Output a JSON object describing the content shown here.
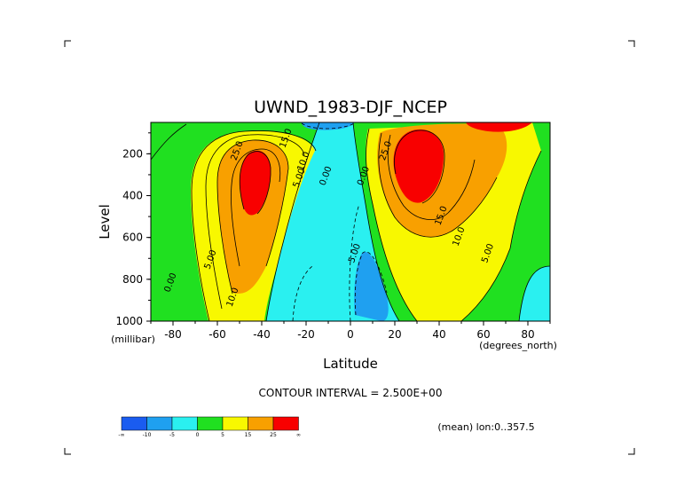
{
  "chart_data": {
    "type": "heatmap",
    "title": "UWND_1983-DJF_NCEP",
    "xlabel": "Latitude",
    "ylabel": "Level",
    "x_unit": "(degrees_north)",
    "y_unit": "(millibar)",
    "xlim": [
      -90,
      90
    ],
    "ylim": [
      1000,
      50
    ],
    "x_ticks": [
      -80,
      -60,
      -40,
      -20,
      0,
      20,
      40,
      60,
      80
    ],
    "x_tick_labels": [
      "-80",
      "-60",
      "-40",
      "-20",
      "0",
      "20",
      "40",
      "60",
      "80"
    ],
    "y_ticks": [
      200,
      400,
      600,
      800,
      1000
    ],
    "y_tick_labels": [
      "200",
      "400",
      "600",
      "800",
      "1000"
    ],
    "contour_interval_text": "CONTOUR INTERVAL = 2.500E+00",
    "subtitle_note": "(mean) lon:0..357.5",
    "contour_labels": [
      {
        "text": "25.0",
        "lat": -50,
        "lev": 190
      },
      {
        "text": "15.0",
        "lat": -28,
        "lev": 130
      },
      {
        "text": "10.0",
        "lat": -20,
        "lev": 240
      },
      {
        "text": "5.00",
        "lat": -22,
        "lev": 320
      },
      {
        "text": "0.00",
        "lat": -10,
        "lev": 310
      },
      {
        "text": "0.00",
        "lat": 7,
        "lev": 310
      },
      {
        "text": "5.00",
        "lat": -62,
        "lev": 710
      },
      {
        "text": "10.0",
        "lat": -52,
        "lev": 890
      },
      {
        "text": "0.00",
        "lat": -80,
        "lev": 820
      },
      {
        "text": "5.00",
        "lat": 3,
        "lev": 680
      },
      {
        "text": "25.0",
        "lat": 17,
        "lev": 190
      },
      {
        "text": "15.0",
        "lat": 42,
        "lev": 500
      },
      {
        "text": "10.0",
        "lat": 50,
        "lev": 600
      },
      {
        "text": "5.00",
        "lat": 63,
        "lev": 680
      }
    ],
    "colorbar": {
      "colors": [
        "#1a5cf0",
        "#1fa0f0",
        "#2af0f0",
        "#20e020",
        "#f8f800",
        "#f8a000",
        "#f80000"
      ],
      "labels": [
        "-∞",
        "-10",
        "-5",
        "0",
        "5",
        "15",
        "25",
        "∞"
      ]
    }
  }
}
